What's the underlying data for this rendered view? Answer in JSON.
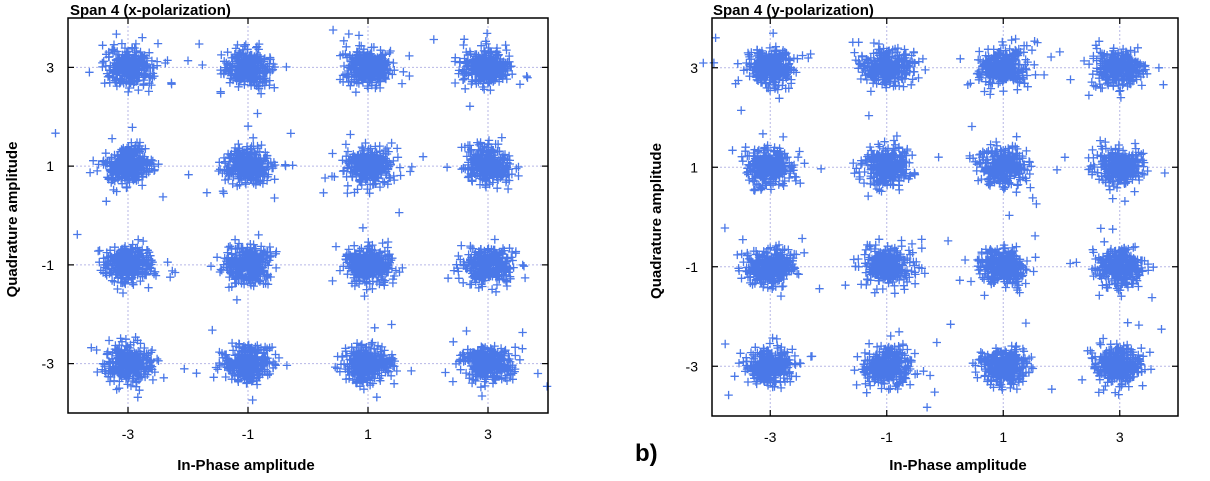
{
  "chart_data": [
    {
      "type": "scatter",
      "title": "Span 4 (x-polarization)",
      "xlabel": "In-Phase amplitude",
      "ylabel": "Quadrature amplitude",
      "xlim": [
        -4.0,
        4.0
      ],
      "ylim": [
        -4.0,
        4.0
      ],
      "xticks": [
        -3,
        -1,
        1,
        3
      ],
      "yticks": [
        -3,
        -1,
        1,
        3
      ],
      "grid": true,
      "marker": "plus",
      "color": "#4a78e8",
      "constellation": "16-QAM",
      "points_per_cluster": 320,
      "spread_sigma": 0.2,
      "seed": 17
    },
    {
      "type": "scatter",
      "title": "Span 4 (y-polarization)",
      "xlabel": "In-Phase amplitude",
      "ylabel": "Quadrature amplitude",
      "xlim": [
        -4.0,
        4.0
      ],
      "ylim": [
        -4.0,
        4.0
      ],
      "xticks": [
        -3,
        -1,
        1,
        3
      ],
      "yticks": [
        -3,
        -1,
        1,
        3
      ],
      "grid": true,
      "marker": "plus",
      "color": "#4a78e8",
      "constellation": "16-QAM",
      "points_per_cluster": 320,
      "spread_sigma": 0.2,
      "seed": 42
    }
  ],
  "panel_label": "b)"
}
